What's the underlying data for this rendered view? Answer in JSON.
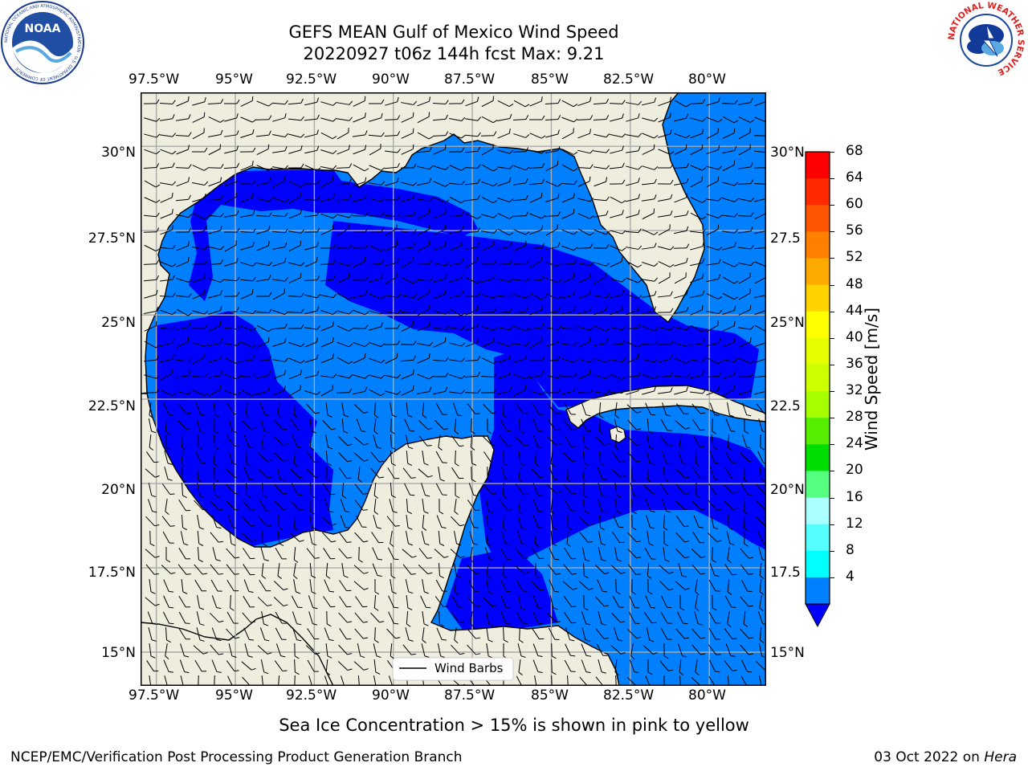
{
  "title": {
    "line1": "GEFS MEAN Gulf of Mexico Wind Speed",
    "line2": "20220927 t06z 144h fcst   Max: 9.21"
  },
  "map": {
    "lon_ticks": [
      "97.5°W",
      "95°W",
      "92.5°W",
      "90°W",
      "87.5°W",
      "85°W",
      "82.5°W",
      "80°W"
    ],
    "lat_ticks_left": [
      "30°N",
      "27.5°N",
      "25°N",
      "22.5°N",
      "20°N",
      "17.5°N",
      "15°N"
    ],
    "lat_ticks_right": [
      "30°N",
      "27.5",
      "25°N",
      "22.5",
      "20°N",
      "17.5",
      "15°N"
    ],
    "lon_range": [
      -98,
      -78.2
    ],
    "lat_range": [
      14,
      31.6
    ],
    "land_color": "#efedde",
    "grid": true,
    "legend": {
      "label": "Wind Barbs",
      "placement": "bottom-center"
    }
  },
  "colorbar": {
    "label": "Wind Speed [m/s]",
    "tick_labels": [
      "68",
      "64",
      "60",
      "56",
      "52",
      "48",
      "44",
      "40",
      "36",
      "32",
      "28",
      "24",
      "20",
      "16",
      "12",
      "8",
      "4"
    ],
    "colors": [
      "#ff0000",
      "#ff2a00",
      "#ff5500",
      "#ff7f00",
      "#ffaa00",
      "#ffd200",
      "#ffff00",
      "#e5ff00",
      "#ccff00",
      "#a6ff00",
      "#55ee00",
      "#00dd00",
      "#55ff80",
      "#aaffff",
      "#55ffff",
      "#00ffff",
      "#007fff"
    ],
    "under_color": "#0000ff"
  },
  "field_colors": {
    "c4_8": "#007fff",
    "c0_4": "#0000ff",
    "c8_12": "#00ffff",
    "c12_16": "#55ffff"
  },
  "logos": {
    "noaa": {
      "text": "NOAA",
      "ring_text": "NATIONAL OCEANIC AND ATMOSPHERIC ADMINISTRATION · U.S. DEPARTMENT OF COMMERCE"
    },
    "nws": {
      "ring_text": "NATIONAL WEATHER SERVICE"
    }
  },
  "subtitle": "Sea Ice Concentration > 15% is shown in pink to yellow",
  "footer": {
    "left": "NCEP/EMC/Verification Post Processing Product Generation Branch",
    "right_date": "03 Oct 2022 on ",
    "right_host": "Hera"
  }
}
